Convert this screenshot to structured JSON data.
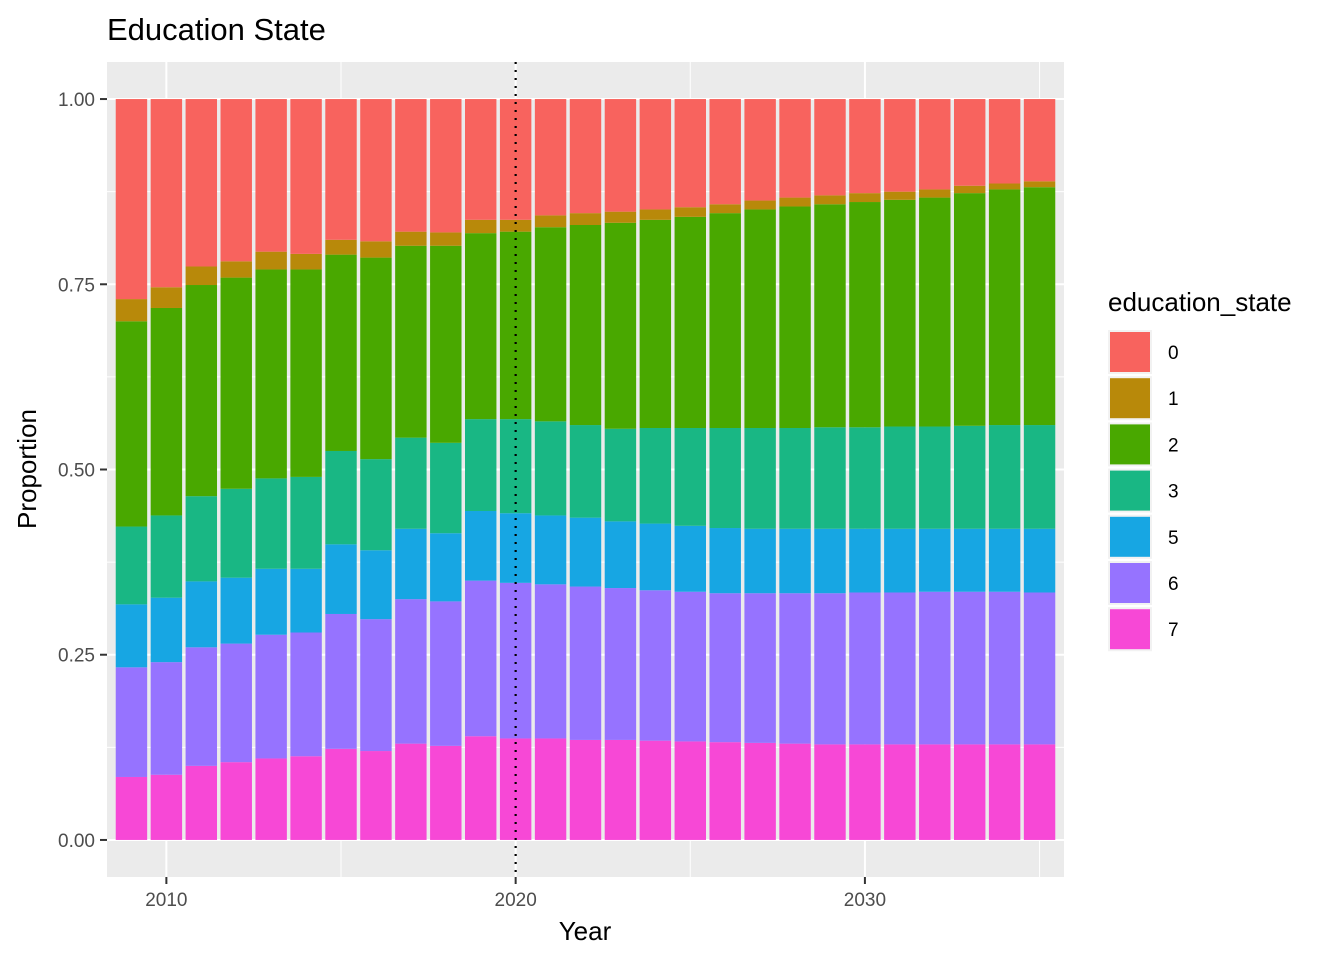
{
  "chart_data": {
    "type": "bar",
    "stacked": true,
    "title": "Education State",
    "xlabel": "Year",
    "ylabel": "Proportion",
    "x": [
      2009,
      2010,
      2011,
      2012,
      2013,
      2014,
      2015,
      2016,
      2017,
      2018,
      2019,
      2020,
      2021,
      2022,
      2023,
      2024,
      2025,
      2026,
      2027,
      2028,
      2029,
      2030,
      2031,
      2032,
      2033,
      2034,
      2035
    ],
    "xlim": [
      2008.3,
      2035.7
    ],
    "ylim": [
      -0.05,
      1.05
    ],
    "x_ticks": [
      2010,
      2020,
      2030
    ],
    "y_ticks": [
      0,
      0.25,
      0.5,
      0.75,
      1.0
    ],
    "y_tick_labels": [
      "0.00",
      "0.25",
      "0.50",
      "0.75",
      "1.00"
    ],
    "vline": {
      "x": 2020,
      "style": "dotted"
    },
    "grid": true,
    "legend": {
      "title": "education_state",
      "position": "right"
    },
    "series": [
      {
        "name": "7",
        "color": "#F748D6",
        "values": [
          0.085,
          0.088,
          0.1,
          0.105,
          0.11,
          0.113,
          0.123,
          0.12,
          0.13,
          0.127,
          0.14,
          0.137,
          0.137,
          0.135,
          0.135,
          0.134,
          0.133,
          0.132,
          0.131,
          0.13,
          0.129,
          0.129,
          0.129,
          0.129,
          0.129,
          0.129,
          0.129
        ]
      },
      {
        "name": "6",
        "color": "#9673FF",
        "values": [
          0.148,
          0.152,
          0.16,
          0.16,
          0.167,
          0.167,
          0.182,
          0.178,
          0.195,
          0.195,
          0.21,
          0.21,
          0.208,
          0.207,
          0.205,
          0.203,
          0.202,
          0.201,
          0.202,
          0.203,
          0.204,
          0.205,
          0.205,
          0.206,
          0.206,
          0.206,
          0.205
        ]
      },
      {
        "name": "5",
        "color": "#17A6E3",
        "values": [
          0.085,
          0.087,
          0.089,
          0.089,
          0.089,
          0.086,
          0.094,
          0.093,
          0.095,
          0.092,
          0.094,
          0.094,
          0.093,
          0.093,
          0.09,
          0.09,
          0.089,
          0.088,
          0.087,
          0.087,
          0.087,
          0.086,
          0.086,
          0.085,
          0.085,
          0.085,
          0.086
        ]
      },
      {
        "name": "3",
        "color": "#19B784",
        "values": [
          0.105,
          0.111,
          0.115,
          0.12,
          0.122,
          0.124,
          0.126,
          0.123,
          0.123,
          0.122,
          0.124,
          0.127,
          0.127,
          0.125,
          0.125,
          0.129,
          0.132,
          0.135,
          0.136,
          0.136,
          0.137,
          0.137,
          0.138,
          0.138,
          0.139,
          0.14,
          0.14
        ]
      },
      {
        "name": "2",
        "color": "#49A800",
        "values": [
          0.277,
          0.28,
          0.285,
          0.285,
          0.282,
          0.28,
          0.265,
          0.272,
          0.259,
          0.266,
          0.251,
          0.253,
          0.262,
          0.27,
          0.278,
          0.281,
          0.285,
          0.29,
          0.295,
          0.299,
          0.301,
          0.304,
          0.306,
          0.309,
          0.314,
          0.318,
          0.321
        ]
      },
      {
        "name": "1",
        "color": "#B8890A",
        "values": [
          0.03,
          0.028,
          0.025,
          0.022,
          0.024,
          0.021,
          0.02,
          0.022,
          0.019,
          0.018,
          0.018,
          0.016,
          0.016,
          0.016,
          0.015,
          0.014,
          0.013,
          0.012,
          0.012,
          0.012,
          0.012,
          0.012,
          0.011,
          0.011,
          0.01,
          0.008,
          0.008
        ]
      },
      {
        "name": "0",
        "color": "#F8635E",
        "values": [
          0.27,
          0.254,
          0.226,
          0.219,
          0.206,
          0.209,
          0.19,
          0.192,
          0.179,
          0.18,
          0.163,
          0.163,
          0.157,
          0.154,
          0.152,
          0.149,
          0.146,
          0.142,
          0.137,
          0.133,
          0.13,
          0.127,
          0.125,
          0.122,
          0.117,
          0.114,
          0.111
        ]
      }
    ],
    "legend_order": [
      "0",
      "1",
      "2",
      "3",
      "5",
      "6",
      "7"
    ]
  }
}
